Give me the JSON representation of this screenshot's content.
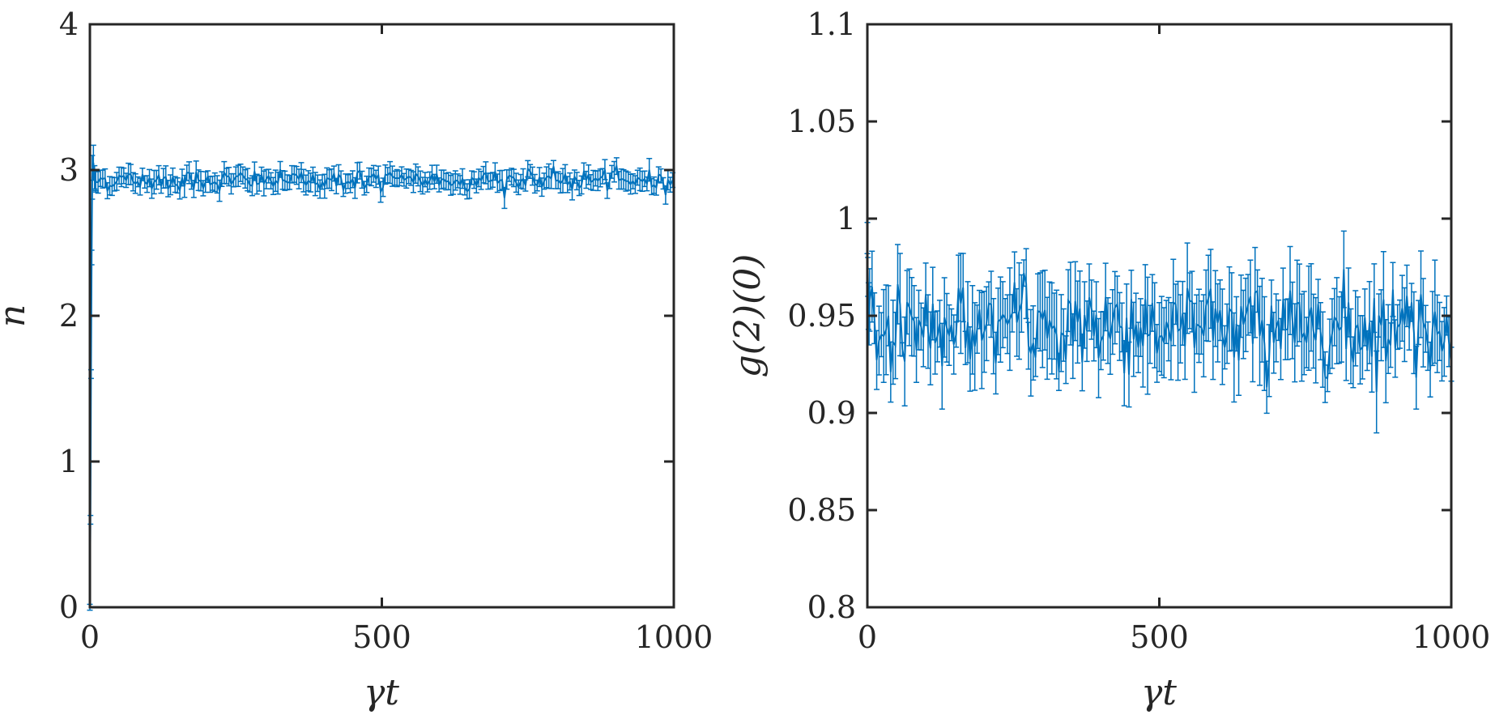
{
  "chart_data": [
    {
      "type": "line",
      "subtype": "errorbar",
      "title": "",
      "xlabel": "γt",
      "ylabel": "n",
      "xlim": [
        0,
        1000
      ],
      "ylim": [
        0,
        4
      ],
      "xticks": [
        0,
        500,
        1000
      ],
      "xtick_labels": [
        "0",
        "500",
        "1000"
      ],
      "yticks": [
        0,
        1,
        2,
        3,
        4
      ],
      "ytick_labels": [
        "0",
        "1",
        "2",
        "3",
        "4"
      ],
      "grid": false,
      "legend": "none",
      "color": "#0072bd",
      "series": [
        {
          "x": [
            0,
            1,
            2,
            3,
            4,
            6,
            8,
            10
          ],
          "y": [
            0,
            0.6,
            1.6,
            2.4,
            2.95,
            3.05,
            2.95,
            2.93
          ],
          "err": [
            0.02,
            0.03,
            0.03,
            0.05,
            0.15,
            0.12,
            0.08,
            0.07
          ]
        }
      ],
      "steady_state": {
        "x_start": 10,
        "x_end": 1000,
        "step": 4,
        "mean": 2.93,
        "jitter": 0.035,
        "err_mean": 0.06,
        "err_spread": 0.02
      }
    },
    {
      "type": "line",
      "subtype": "errorbar",
      "title": "",
      "xlabel": "γt",
      "ylabel": "g(2)(0)",
      "xlim": [
        0,
        1000
      ],
      "ylim": [
        0.8,
        1.1
      ],
      "xticks": [
        0,
        500,
        1000
      ],
      "xtick_labels": [
        "0",
        "500",
        "1000"
      ],
      "yticks": [
        0.8,
        0.85,
        0.9,
        0.95,
        1,
        1.05,
        1.1
      ],
      "ytick_labels": [
        "0.8",
        "0.85",
        "0.9",
        "0.95",
        "1",
        "1.05",
        "1.1"
      ],
      "grid": false,
      "legend": "none",
      "color": "#0072bd",
      "series": [
        {
          "x": [
            0,
            1,
            2,
            3
          ],
          "y": [
            0.99,
            0.97,
            0.955,
            0.95
          ],
          "err": [
            0.008,
            0.01,
            0.012,
            0.015
          ]
        }
      ],
      "steady_state": {
        "x_start": 4,
        "x_end": 1000,
        "step": 4,
        "mean": 0.945,
        "jitter": 0.012,
        "err_mean": 0.017,
        "err_spread": 0.008
      }
    }
  ]
}
